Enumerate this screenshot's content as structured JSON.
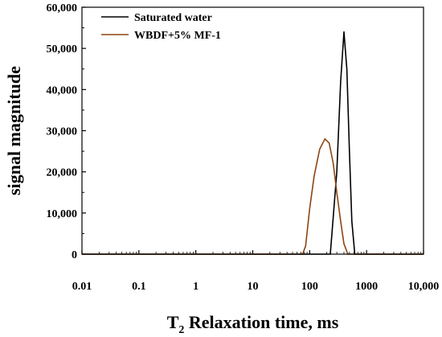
{
  "chart_data": {
    "type": "line",
    "xlabel": {
      "main": "T",
      "sub": "2",
      "rest": " Relaxation time, ms"
    },
    "ylabel": "signal magnitude",
    "x_scale": "log",
    "xlim": [
      0.01,
      10000
    ],
    "ylim": [
      0,
      60000
    ],
    "x_ticks": [
      0.01,
      0.1,
      1,
      10,
      100,
      1000,
      10000
    ],
    "x_tick_labels": [
      "0.01",
      "0.1",
      "1",
      "10",
      "100",
      "1000",
      "10,000"
    ],
    "y_ticks": [
      0,
      10000,
      20000,
      30000,
      40000,
      50000,
      60000
    ],
    "y_tick_labels": [
      "0",
      "10,000",
      "20,000",
      "30,000",
      "40,000",
      "50,000",
      "60,000"
    ],
    "grid": false,
    "legend_position": "top-left",
    "series": [
      {
        "name": "Saturated water",
        "color": "#000000",
        "x": [
          0.01,
          100,
          230,
          300,
          350,
          400,
          450,
          500,
          550,
          620,
          1000,
          10000
        ],
        "y": [
          0,
          0,
          0,
          20000,
          42000,
          54000,
          45000,
          25000,
          8000,
          0,
          0,
          0
        ]
      },
      {
        "name": "WBDF+5% MF-1",
        "color": "#8B4513",
        "x": [
          0.01,
          75,
          85,
          100,
          120,
          150,
          185,
          220,
          260,
          300,
          350,
          400,
          470,
          1000,
          10000
        ],
        "y": [
          0,
          0,
          2000,
          11000,
          19000,
          25500,
          28000,
          27000,
          22000,
          15000,
          8000,
          2500,
          0,
          0,
          0
        ]
      }
    ]
  }
}
